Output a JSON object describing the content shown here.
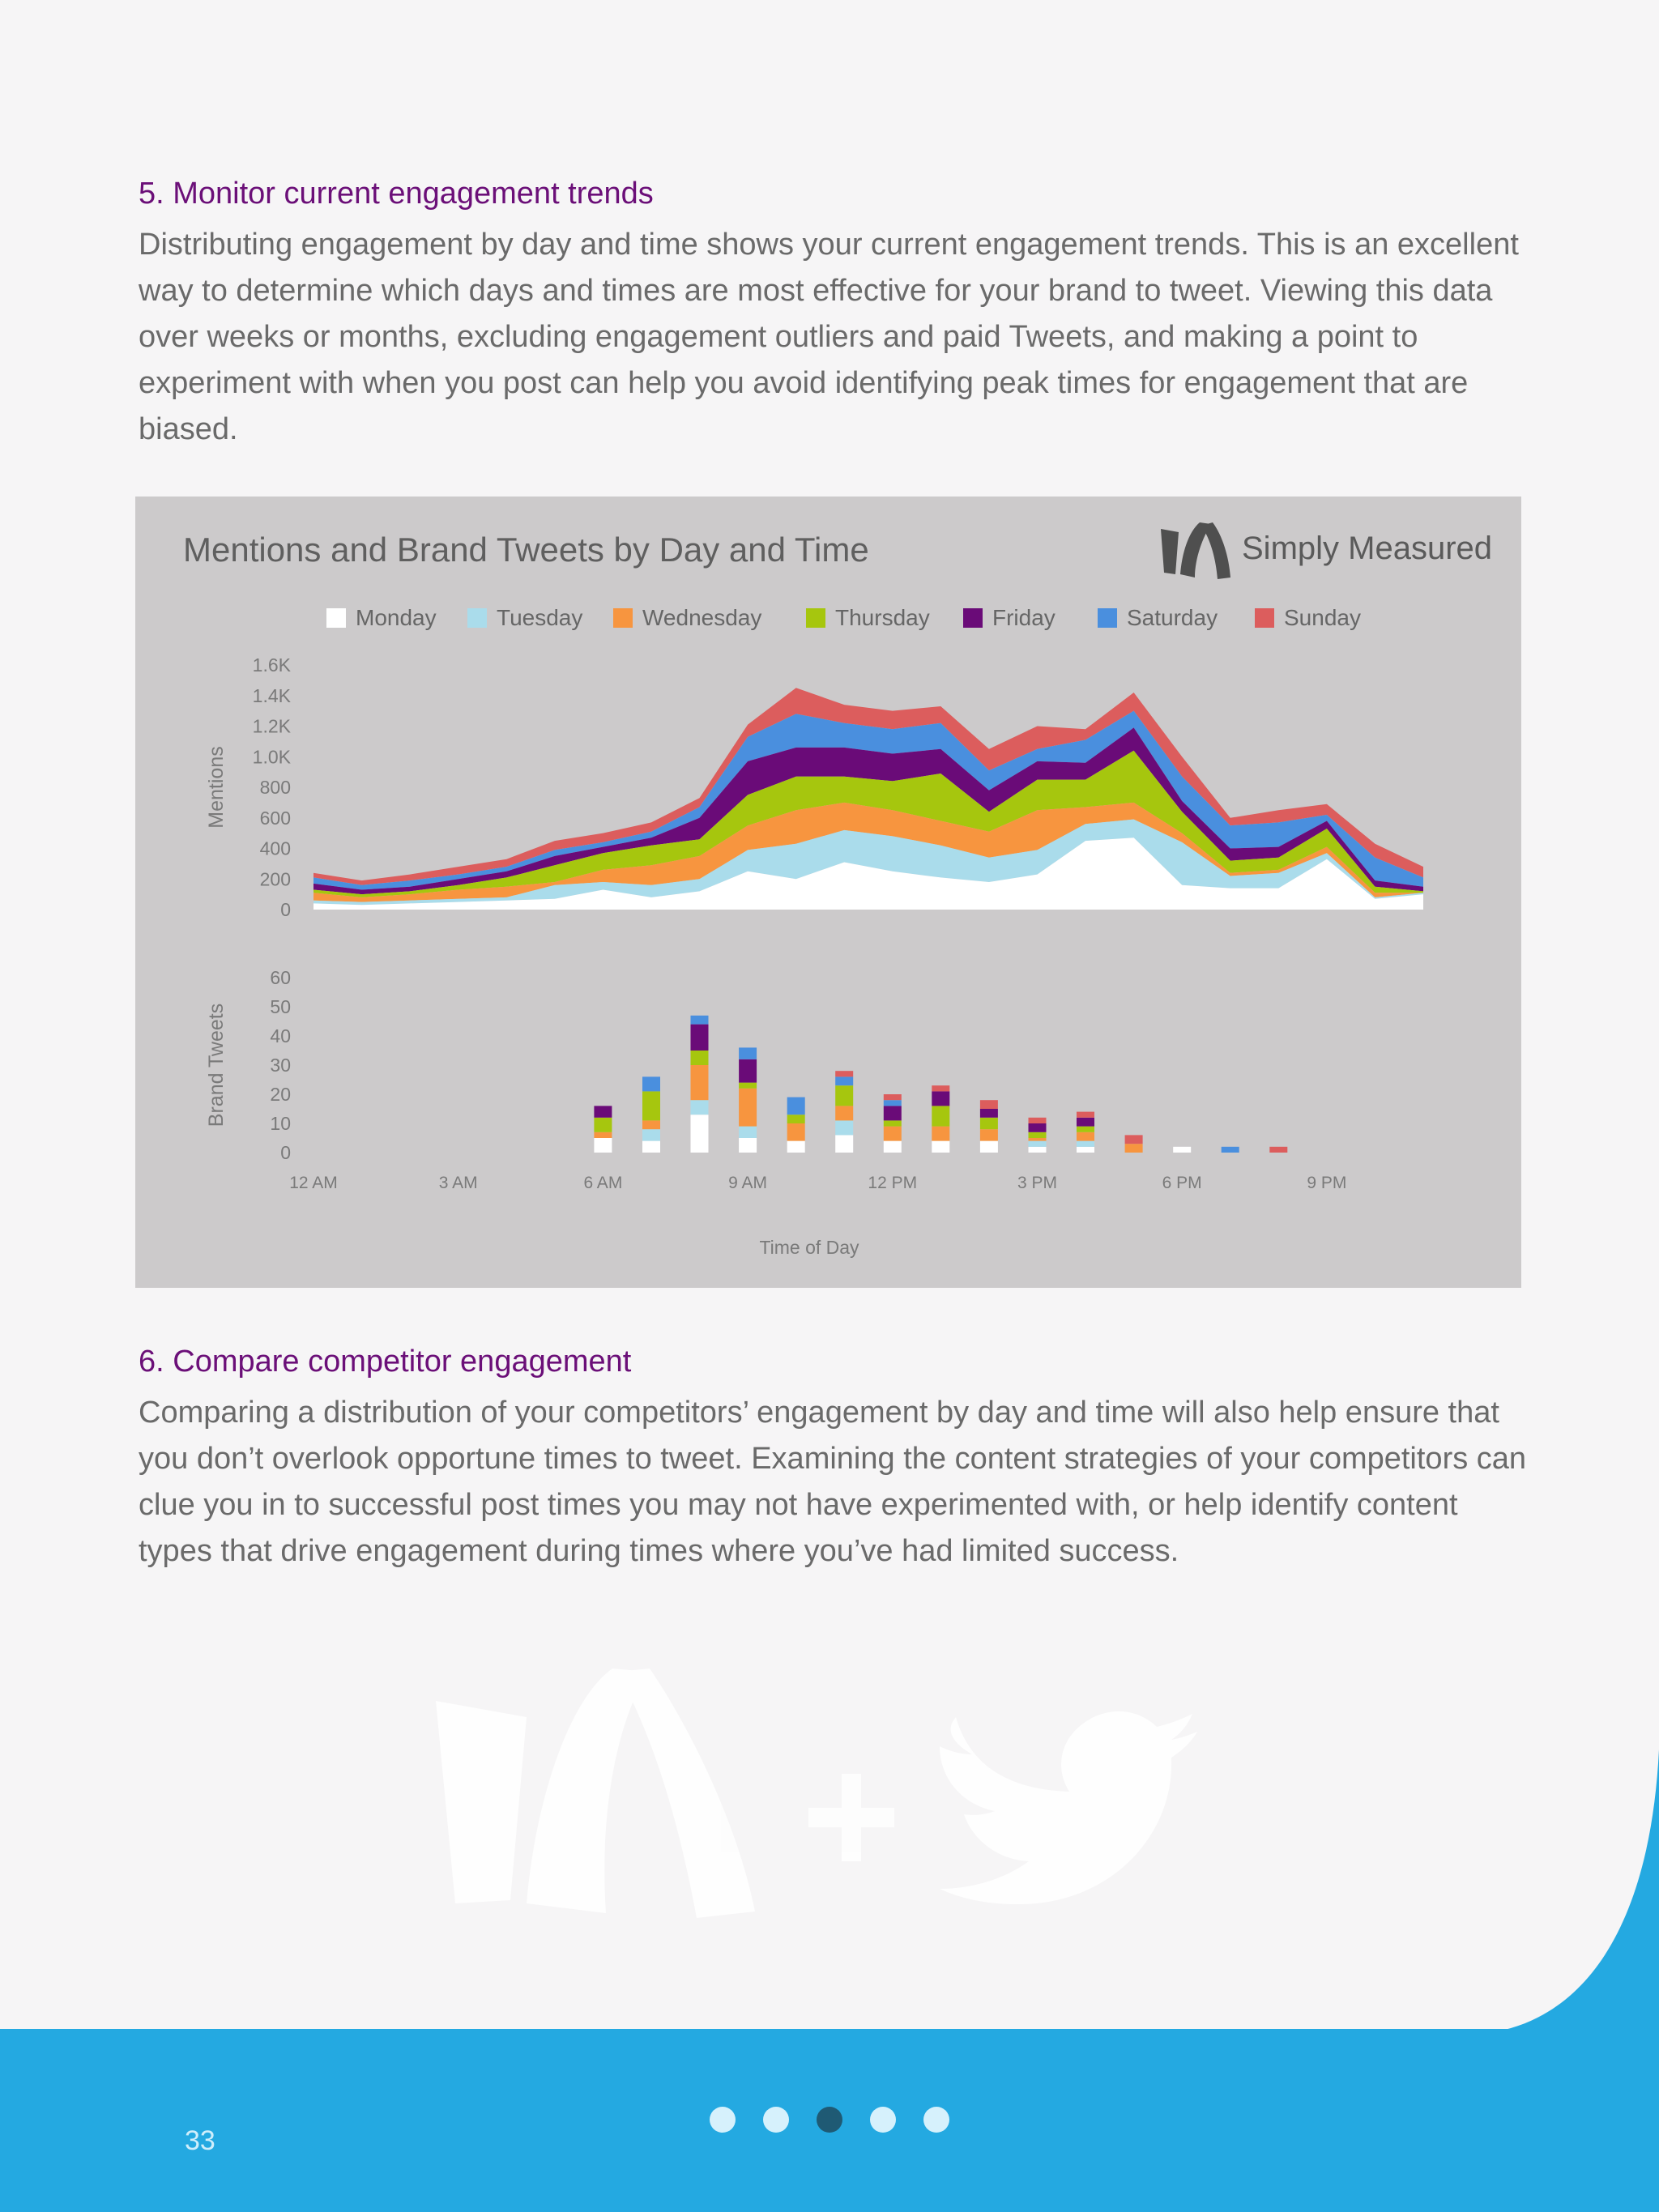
{
  "section5": {
    "heading": "5. Monitor current engagement trends",
    "body": "Distributing engagement by day and time shows your current engagement trends. This is an excellent way to determine which days and times are most effective for your brand to tweet. Viewing this data over weeks or months, excluding engagement outliers and paid Tweets, and making a point to experiment with when you post can help you avoid identifying peak times for engagement that are biased."
  },
  "section6": {
    "heading": "6. Compare competitor engagement",
    "body": "Comparing a distribution of your competitors’ engagement by day and time will also help ensure that you don’t overlook opportune times to tweet. Examining the content strategies of your competitors can clue you in to successful post times you may not have experimented with, or help identify content types that drive engagement during times where you’ve had limited success."
  },
  "brand": {
    "name": "Simply Measured"
  },
  "footer": {
    "page_number": "33",
    "pager_total": 5,
    "pager_current": 3
  },
  "colors": {
    "heading": "#6b0f78",
    "footer": "#24a9e1",
    "chart_bg": "#cccacb",
    "Monday": "#ffffff",
    "Tuesday": "#aadceb",
    "Wednesday": "#f7953f",
    "Thursday": "#a6c60e",
    "Friday": "#6a0b78",
    "Saturday": "#4a8fde",
    "Sunday": "#dc5d5d"
  },
  "chart_data": [
    {
      "type": "area",
      "stacked": true,
      "title": "Mentions and Brand Tweets by Day and Time",
      "ylabel": "Mentions",
      "yticks": [
        "0",
        "200",
        "400",
        "600",
        "800",
        "1.0K",
        "1.2K",
        "1.4K",
        "1.6K"
      ],
      "ylim": [
        0,
        1600
      ],
      "legend_position": "top",
      "x": [
        0,
        1,
        2,
        3,
        4,
        5,
        6,
        7,
        8,
        9,
        10,
        11,
        12,
        13,
        14,
        15,
        16,
        17,
        18,
        19,
        20,
        21,
        22,
        23
      ],
      "series": [
        {
          "name": "Monday",
          "values": [
            40,
            30,
            40,
            50,
            60,
            70,
            130,
            80,
            120,
            250,
            200,
            310,
            250,
            210,
            180,
            230,
            450,
            470,
            160,
            140,
            140,
            330,
            70,
            100
          ]
        },
        {
          "name": "Tuesday",
          "values": [
            20,
            20,
            20,
            20,
            20,
            90,
            50,
            80,
            80,
            140,
            230,
            210,
            230,
            210,
            160,
            160,
            110,
            120,
            280,
            80,
            100,
            40,
            10,
            10
          ]
        },
        {
          "name": "Wednesday",
          "values": [
            50,
            30,
            40,
            60,
            70,
            20,
            80,
            130,
            150,
            160,
            220,
            180,
            170,
            160,
            170,
            260,
            110,
            110,
            60,
            20,
            20,
            40,
            30,
            0
          ]
        },
        {
          "name": "Thursday",
          "values": [
            20,
            20,
            20,
            30,
            60,
            110,
            110,
            130,
            110,
            200,
            220,
            170,
            190,
            310,
            130,
            200,
            180,
            340,
            140,
            80,
            80,
            120,
            40,
            10
          ]
        },
        {
          "name": "Friday",
          "values": [
            40,
            30,
            30,
            40,
            40,
            60,
            40,
            50,
            140,
            220,
            190,
            190,
            180,
            160,
            140,
            120,
            110,
            150,
            70,
            80,
            70,
            50,
            40,
            30
          ]
        },
        {
          "name": "Saturday",
          "values": [
            40,
            30,
            40,
            30,
            30,
            40,
            30,
            40,
            70,
            160,
            220,
            160,
            160,
            170,
            130,
            80,
            150,
            110,
            160,
            150,
            160,
            40,
            150,
            60
          ]
        },
        {
          "name": "Sunday",
          "values": [
            30,
            30,
            40,
            50,
            50,
            60,
            60,
            60,
            60,
            80,
            170,
            120,
            120,
            110,
            140,
            150,
            70,
            120,
            130,
            50,
            80,
            70,
            90,
            70
          ]
        }
      ]
    },
    {
      "type": "bar",
      "stacked": true,
      "ylabel": "Brand Tweets",
      "xlabel": "Time of Day",
      "ylim": [
        0,
        60
      ],
      "yticks": [
        "0",
        "10",
        "20",
        "30",
        "40",
        "50",
        "60"
      ],
      "xtick_labels": [
        "12 AM",
        "3 AM",
        "6 AM",
        "9 AM",
        "12 PM",
        "3 PM",
        "6 PM",
        "9 PM"
      ],
      "xtick_hours": [
        0,
        3,
        6,
        9,
        12,
        15,
        18,
        21
      ],
      "hours": [
        6,
        7,
        8,
        9,
        10,
        11,
        12,
        13,
        14,
        15,
        16,
        17,
        18,
        19,
        20
      ],
      "series": [
        {
          "name": "Monday",
          "values": [
            5,
            4,
            13,
            5,
            4,
            6,
            4,
            4,
            4,
            2,
            2,
            0,
            2,
            0,
            0
          ]
        },
        {
          "name": "Tuesday",
          "values": [
            0,
            4,
            5,
            4,
            0,
            5,
            0,
            0,
            0,
            2,
            2,
            0,
            0,
            0,
            0
          ]
        },
        {
          "name": "Wednesday",
          "values": [
            2,
            3,
            12,
            13,
            6,
            5,
            5,
            5,
            4,
            1,
            3,
            3,
            0,
            0,
            0
          ]
        },
        {
          "name": "Thursday",
          "values": [
            5,
            10,
            5,
            2,
            3,
            7,
            2,
            7,
            4,
            2,
            2,
            0,
            0,
            0,
            0
          ]
        },
        {
          "name": "Friday",
          "values": [
            4,
            0,
            9,
            8,
            0,
            0,
            5,
            5,
            3,
            3,
            3,
            0,
            0,
            0,
            0
          ]
        },
        {
          "name": "Saturday",
          "values": [
            0,
            5,
            3,
            4,
            6,
            3,
            2,
            0,
            0,
            0,
            0,
            0,
            0,
            2,
            0
          ]
        },
        {
          "name": "Sunday",
          "values": [
            0,
            0,
            0,
            0,
            0,
            2,
            2,
            2,
            3,
            2,
            2,
            3,
            0,
            0,
            2
          ]
        }
      ]
    }
  ]
}
